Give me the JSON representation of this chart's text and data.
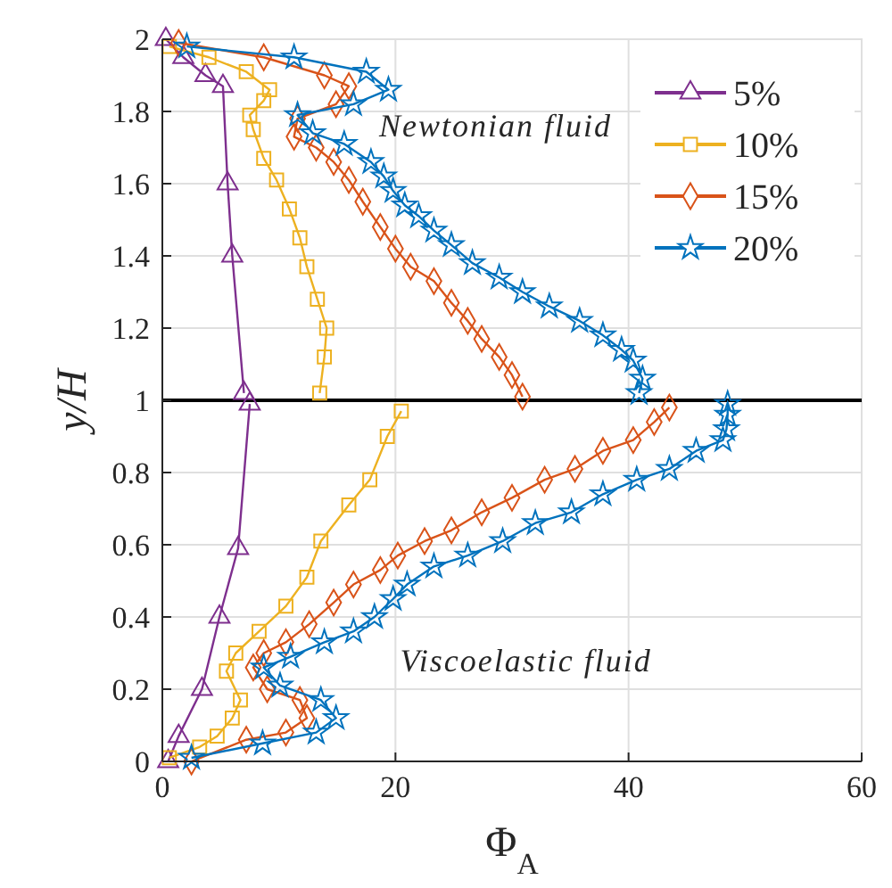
{
  "chart_data": {
    "type": "line",
    "xlabel": "Φ$_{A}$",
    "ylabel": "y/H",
    "xlim": [
      0,
      60
    ],
    "ylim": [
      0,
      2
    ],
    "xticks": [
      0,
      20,
      40,
      60
    ],
    "yticks": [
      0,
      0.2,
      0.4,
      0.6,
      0.8,
      1,
      1.2,
      1.4,
      1.6,
      1.8,
      2
    ],
    "grid": true,
    "legend": "top right",
    "line_style": "solid",
    "annotations": [
      "Newtonian fluid",
      "Viscoelastic fluid"
    ],
    "ref_lines": [
      {
        "axis": "y",
        "value": 1,
        "color": "#000000"
      }
    ],
    "series": [
      {
        "name": "5%",
        "color": "#7e2f8e",
        "marker": "triangle",
        "x": [
          0.5,
          1.4,
          3.4,
          4.9,
          6.5,
          7.5,
          null,
          7,
          6,
          5.6,
          5.2,
          3.7,
          1.8,
          0.3
        ],
        "values": [
          0,
          0.07,
          0.2,
          0.4,
          0.59,
          0.99,
          null,
          1.02,
          1.4,
          1.6,
          1.87,
          1.9,
          1.95,
          2
        ]
      },
      {
        "name": "10%",
        "color": "#edb120",
        "marker": "square",
        "x": [
          0.6,
          3.2,
          4.7,
          6,
          6.7,
          5.5,
          6.3,
          8.3,
          10.6,
          12.4,
          13.6,
          16,
          17.8,
          19.3,
          20.5,
          null,
          13.5,
          13.9,
          14.1,
          13.3,
          12.4,
          11.8,
          10.9,
          9.8,
          8.7,
          7.8,
          7.5,
          8.7,
          9.2,
          7.2,
          4,
          0.6
        ],
        "values": [
          0.01,
          0.04,
          0.07,
          0.12,
          0.17,
          0.25,
          0.3,
          0.36,
          0.43,
          0.51,
          0.61,
          0.71,
          0.78,
          0.9,
          0.97,
          null,
          1.02,
          1.12,
          1.2,
          1.28,
          1.37,
          1.45,
          1.53,
          1.61,
          1.67,
          1.75,
          1.79,
          1.83,
          1.86,
          1.91,
          1.95,
          1.98
        ]
      },
      {
        "name": "15%",
        "color": "#d95319",
        "marker": "diamond",
        "x": [
          2.5,
          7.2,
          10.6,
          12.4,
          11.8,
          9,
          7.8,
          8.7,
          10.6,
          12.6,
          14.7,
          16.4,
          18.7,
          20.2,
          22.5,
          24.8,
          27.4,
          30,
          32.8,
          35.4,
          37.8,
          40.4,
          42.2,
          43.5,
          null,
          30.9,
          30,
          28.9,
          27.4,
          26.2,
          24.8,
          23.3,
          21.3,
          20,
          18.7,
          17.2,
          16,
          14.7,
          13.2,
          11.3,
          11.6,
          14.9,
          16,
          13.9,
          8.7,
          1.4
        ],
        "values": [
          0,
          0.06,
          0.08,
          0.12,
          0.17,
          0.2,
          0.26,
          0.3,
          0.33,
          0.38,
          0.44,
          0.49,
          0.53,
          0.57,
          0.61,
          0.64,
          0.69,
          0.73,
          0.78,
          0.81,
          0.86,
          0.89,
          0.94,
          0.98,
          null,
          1.01,
          1.07,
          1.12,
          1.17,
          1.22,
          1.27,
          1.33,
          1.37,
          1.42,
          1.48,
          1.55,
          1.61,
          1.66,
          1.7,
          1.73,
          1.78,
          1.82,
          1.87,
          1.9,
          1.95,
          1.99
        ]
      },
      {
        "name": "20%",
        "color": "#0072bd",
        "marker": "star",
        "x": [
          2.5,
          8.6,
          13.2,
          14.9,
          13.6,
          10.1,
          8.7,
          11,
          13.9,
          16.4,
          18.2,
          19.8,
          21,
          23.3,
          26.2,
          29.2,
          32,
          35.1,
          37.8,
          40.7,
          43.5,
          45.8,
          48.1,
          48.4,
          48.5,
          48.5,
          null,
          40.9,
          41.2,
          40.4,
          39.4,
          37.8,
          35.8,
          33.2,
          30.9,
          28.9,
          26.6,
          24.8,
          23.3,
          22,
          20.8,
          19.8,
          19,
          17.9,
          15.6,
          12.9,
          11.6,
          16.4,
          19.4,
          17.5,
          11.3,
          2.1
        ],
        "values": [
          0.01,
          0.05,
          0.08,
          0.12,
          0.17,
          0.21,
          0.26,
          0.29,
          0.33,
          0.36,
          0.4,
          0.45,
          0.49,
          0.54,
          0.57,
          0.61,
          0.66,
          0.69,
          0.74,
          0.78,
          0.81,
          0.86,
          0.89,
          0.92,
          0.96,
          0.99,
          null,
          1.02,
          1.06,
          1.11,
          1.14,
          1.18,
          1.22,
          1.26,
          1.3,
          1.34,
          1.38,
          1.43,
          1.47,
          1.51,
          1.54,
          1.58,
          1.62,
          1.66,
          1.71,
          1.74,
          1.79,
          1.82,
          1.86,
          1.91,
          1.95,
          1.98
        ]
      }
    ]
  }
}
